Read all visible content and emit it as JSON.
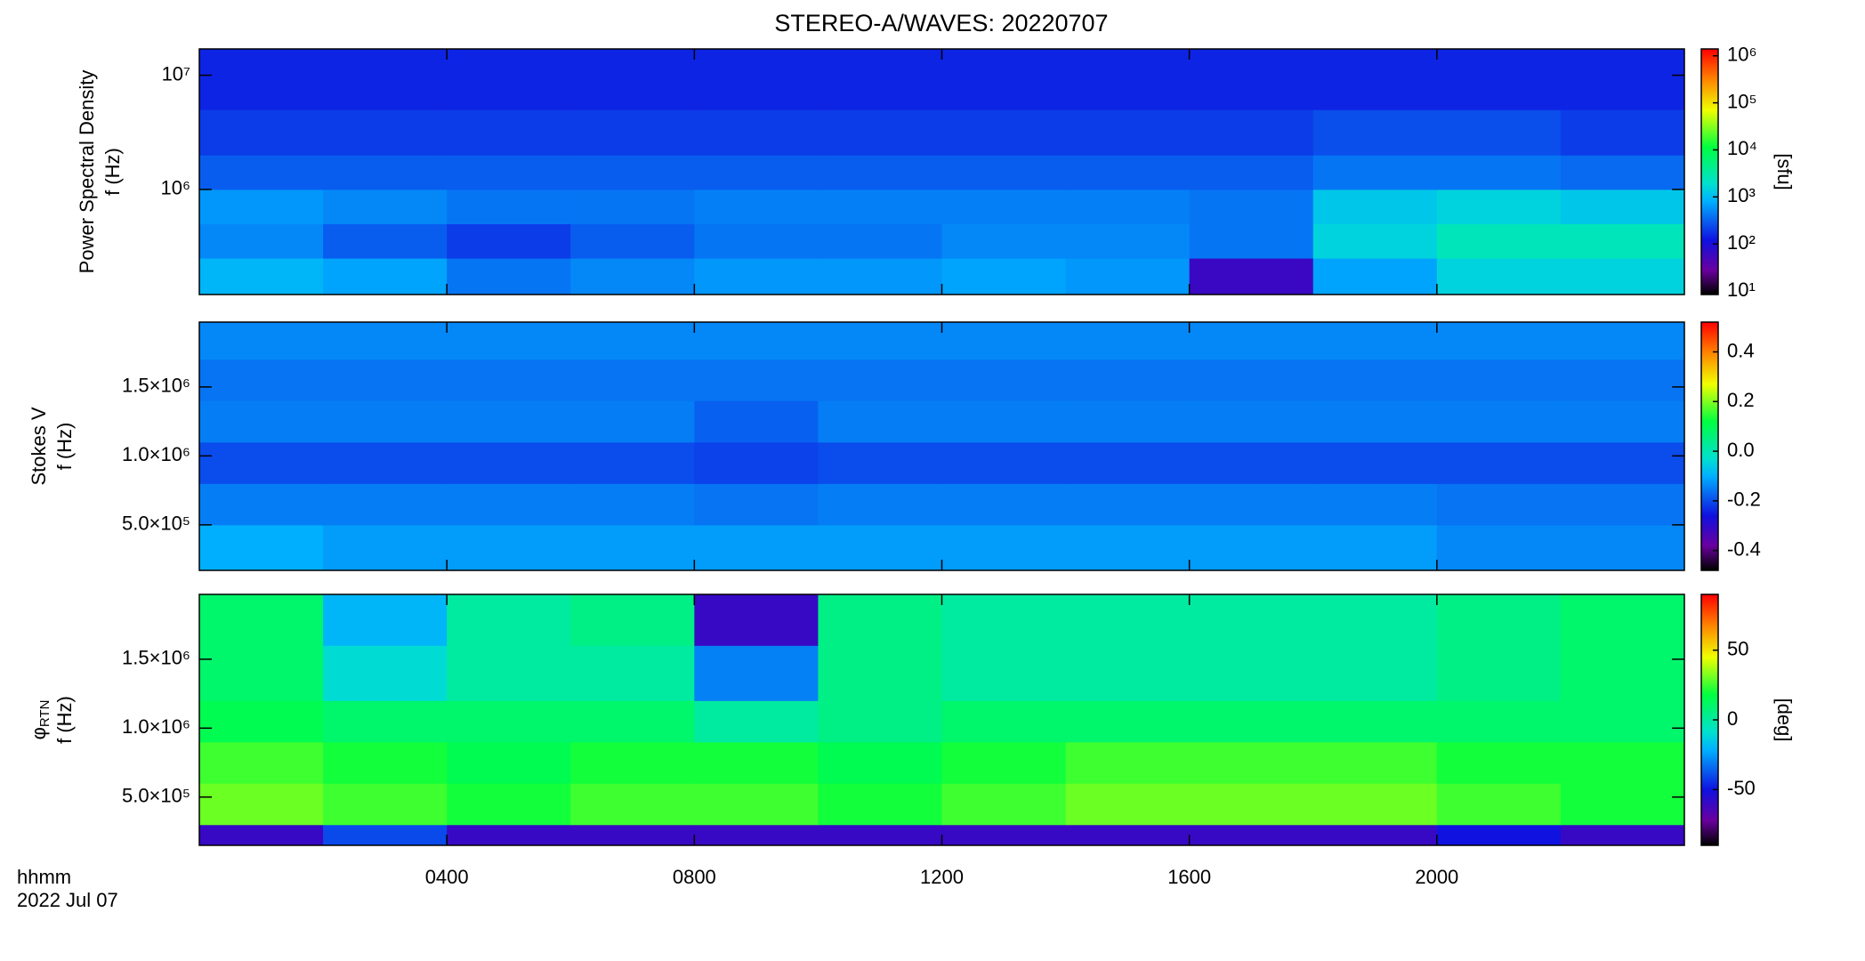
{
  "chart_data": [
    {
      "type": "heatmap",
      "title": "STEREO-A/WAVES: 20220707",
      "ylabel": "Power Spectral Density",
      "ylabel_unit": "f (Hz)",
      "x": [
        0,
        2,
        4,
        6,
        8,
        10,
        12,
        14,
        16,
        18,
        20,
        22,
        24
      ],
      "y": [
        120000,
        250000,
        500000,
        1000000,
        2000000,
        5000000,
        17000000
      ],
      "z": [
        [
          900,
          700,
          400,
          500,
          600,
          600,
          700,
          600,
          60,
          700,
          1500,
          1500
        ],
        [
          500,
          300,
          200,
          300,
          400,
          400,
          500,
          500,
          400,
          1500,
          2500,
          2500
        ],
        [
          600,
          500,
          400,
          400,
          450,
          450,
          450,
          450,
          400,
          1200,
          1500,
          1200
        ],
        [
          300,
          300,
          300,
          300,
          300,
          300,
          300,
          300,
          300,
          400,
          400,
          350
        ],
        [
          200,
          200,
          200,
          200,
          200,
          200,
          200,
          200,
          200,
          250,
          250,
          200
        ],
        [
          150,
          150,
          150,
          150,
          150,
          150,
          150,
          150,
          150,
          150,
          150,
          150
        ]
      ],
      "xlim": [
        0,
        24
      ],
      "ylim": [
        120000,
        17000000
      ],
      "yscale": "log",
      "yticks": [
        {
          "value": 1000000,
          "label": "10⁶"
        },
        {
          "value": 10000000,
          "label": "10⁷"
        }
      ],
      "colormap": "rainbow",
      "clim": [
        8.4,
        1400000
      ],
      "cscale": "log",
      "cticks": [
        {
          "value": 10,
          "label": "10¹"
        },
        {
          "value": 100,
          "label": "10²"
        },
        {
          "value": 1000,
          "label": "10³"
        },
        {
          "value": 10000,
          "label": "10⁴"
        },
        {
          "value": 100000,
          "label": "10⁵"
        },
        {
          "value": 1000000,
          "label": "10⁶"
        }
      ],
      "clabel": "[sfu]"
    },
    {
      "type": "heatmap",
      "ylabel": "Stokes V",
      "ylabel_unit": "f (Hz)",
      "x": [
        0,
        2,
        4,
        6,
        8,
        10,
        12,
        14,
        16,
        18,
        20,
        22,
        24
      ],
      "y": [
        170000,
        500000,
        800000,
        1100000,
        1400000,
        1700000,
        1970000
      ],
      "z": [
        [
          -0.1,
          -0.12,
          -0.12,
          -0.12,
          -0.12,
          -0.12,
          -0.12,
          -0.12,
          -0.12,
          -0.12,
          -0.14,
          -0.14
        ],
        [
          -0.15,
          -0.15,
          -0.15,
          -0.15,
          -0.16,
          -0.15,
          -0.15,
          -0.15,
          -0.15,
          -0.15,
          -0.16,
          -0.16
        ],
        [
          -0.2,
          -0.2,
          -0.2,
          -0.2,
          -0.21,
          -0.2,
          -0.2,
          -0.2,
          -0.2,
          -0.2,
          -0.2,
          -0.2
        ],
        [
          -0.15,
          -0.15,
          -0.15,
          -0.15,
          -0.18,
          -0.15,
          -0.15,
          -0.15,
          -0.15,
          -0.15,
          -0.15,
          -0.15
        ],
        [
          -0.16,
          -0.16,
          -0.16,
          -0.16,
          -0.16,
          -0.16,
          -0.16,
          -0.16,
          -0.16,
          -0.16,
          -0.16,
          -0.16
        ],
        [
          -0.14,
          -0.14,
          -0.14,
          -0.14,
          -0.14,
          -0.14,
          -0.14,
          -0.14,
          -0.14,
          -0.14,
          -0.14,
          -0.14
        ]
      ],
      "xlim": [
        0,
        24
      ],
      "ylim": [
        170000,
        1970000
      ],
      "yscale": "linear",
      "yticks": [
        {
          "value": 500000,
          "label": "5.0×10⁵"
        },
        {
          "value": 1000000,
          "label": "1.0×10⁶"
        },
        {
          "value": 1500000,
          "label": "1.5×10⁶"
        }
      ],
      "colormap": "rainbow",
      "clim": [
        -0.48,
        0.52
      ],
      "cscale": "linear",
      "cticks": [
        -0.4,
        -0.2,
        {
          "value": 0,
          "label": "0.0"
        },
        0.2,
        0.4
      ]
    },
    {
      "type": "heatmap",
      "ylabel": "φ",
      "ylabel_subscript": "RTN",
      "ylabel_unit": "f (Hz)",
      "xlabel": "hhmm",
      "xlabel_date": "2022 Jul 07",
      "x": [
        0,
        2,
        4,
        6,
        8,
        10,
        12,
        14,
        16,
        18,
        20,
        22,
        24
      ],
      "y": [
        150000,
        300000,
        600000,
        900000,
        1200000,
        1600000,
        1970000
      ],
      "z": [
        [
          -60,
          -40,
          -60,
          -60,
          -60,
          -60,
          -60,
          -60,
          -60,
          -60,
          -50,
          -60
        ],
        [
          30,
          25,
          20,
          25,
          25,
          20,
          25,
          30,
          30,
          30,
          25,
          20
        ],
        [
          25,
          20,
          15,
          20,
          20,
          15,
          20,
          25,
          25,
          25,
          20,
          20
        ],
        [
          15,
          10,
          10,
          10,
          0,
          5,
          10,
          10,
          10,
          10,
          10,
          10
        ],
        [
          10,
          -10,
          0,
          0,
          -30,
          5,
          0,
          0,
          0,
          0,
          5,
          10
        ],
        [
          10,
          -20,
          0,
          5,
          -60,
          5,
          0,
          0,
          0,
          0,
          5,
          10
        ]
      ],
      "xlim": [
        0,
        24
      ],
      "ylim": [
        150000,
        1970000
      ],
      "yscale": "linear",
      "xticks": [
        {
          "value": 4,
          "label": "0400"
        },
        {
          "value": 8,
          "label": "0800"
        },
        {
          "value": 12,
          "label": "1200"
        },
        {
          "value": 16,
          "label": "1600"
        },
        {
          "value": 20,
          "label": "2000"
        }
      ],
      "yticks": [
        {
          "value": 500000,
          "label": "5.0×10⁵"
        },
        {
          "value": 1000000,
          "label": "1.0×10⁶"
        },
        {
          "value": 1500000,
          "label": "1.5×10⁶"
        }
      ],
      "colormap": "rainbow",
      "clim": [
        -90,
        90
      ],
      "cscale": "linear",
      "cticks": [
        -50,
        0,
        50
      ],
      "clabel": "[deg]"
    }
  ]
}
